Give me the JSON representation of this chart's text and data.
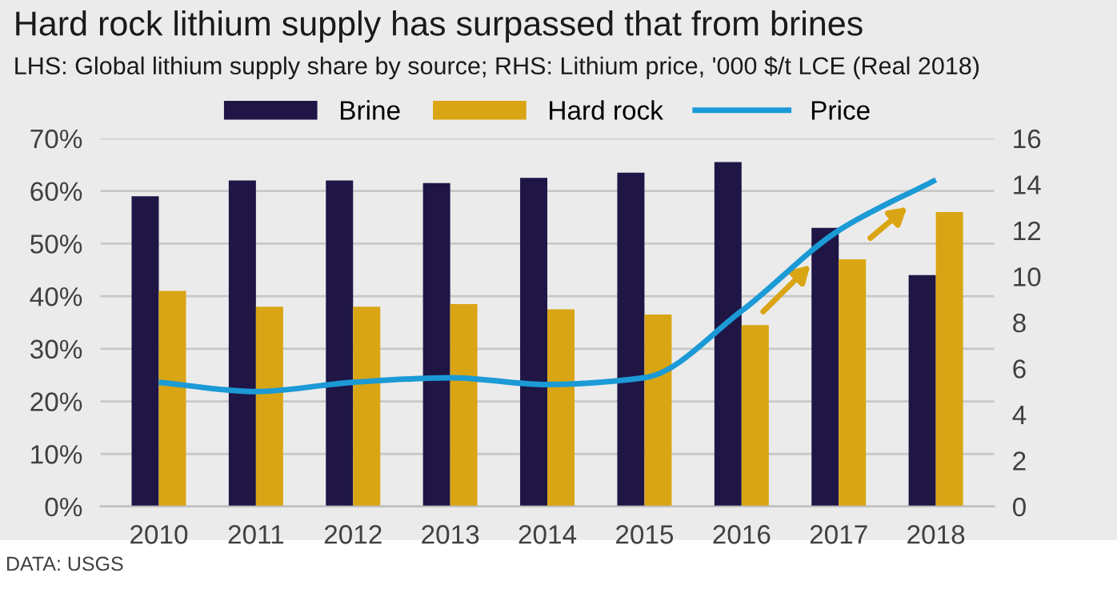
{
  "chart_data": {
    "type": "bar",
    "title": "Hard rock lithium supply has surpassed that from brines",
    "subtitle": "LHS: Global lithium supply share by source; RHS: Lithium price, '000 $/t LCE (Real 2018)",
    "categories": [
      "2010",
      "2011",
      "2012",
      "2013",
      "2014",
      "2015",
      "2016",
      "2017",
      "2018"
    ],
    "series": [
      {
        "name": "Brine",
        "color": "#1f1646",
        "values": [
          59,
          62,
          62,
          61.5,
          62.5,
          63.5,
          65.5,
          53,
          44
        ]
      },
      {
        "name": "Hard rock",
        "color": "#d9a514",
        "values": [
          41,
          38,
          38,
          38.5,
          37.5,
          36.5,
          34.5,
          47,
          56
        ]
      },
      {
        "name": "Price",
        "type": "line",
        "axis": "y2",
        "color": "#1b9ad6",
        "values": [
          5.4,
          5.0,
          5.4,
          5.6,
          5.3,
          5.6,
          8.5,
          12,
          14.2
        ]
      }
    ],
    "ylim": [
      0,
      70
    ],
    "yticks": [
      {
        "value": 0,
        "label": "0%"
      },
      {
        "value": 10,
        "label": "10%"
      },
      {
        "value": 20,
        "label": "20%"
      },
      {
        "value": 30,
        "label": "30%"
      },
      {
        "value": 40,
        "label": "40%"
      },
      {
        "value": 50,
        "label": "50%"
      },
      {
        "value": 60,
        "label": "60%"
      },
      {
        "value": 70,
        "label": "70%"
      }
    ],
    "y2lim": [
      0,
      16
    ],
    "y2ticks": [
      0,
      2,
      4,
      6,
      8,
      10,
      12,
      14,
      16
    ],
    "grid": "y",
    "legend": "top",
    "annotations": [
      "DATA: USGS"
    ]
  }
}
